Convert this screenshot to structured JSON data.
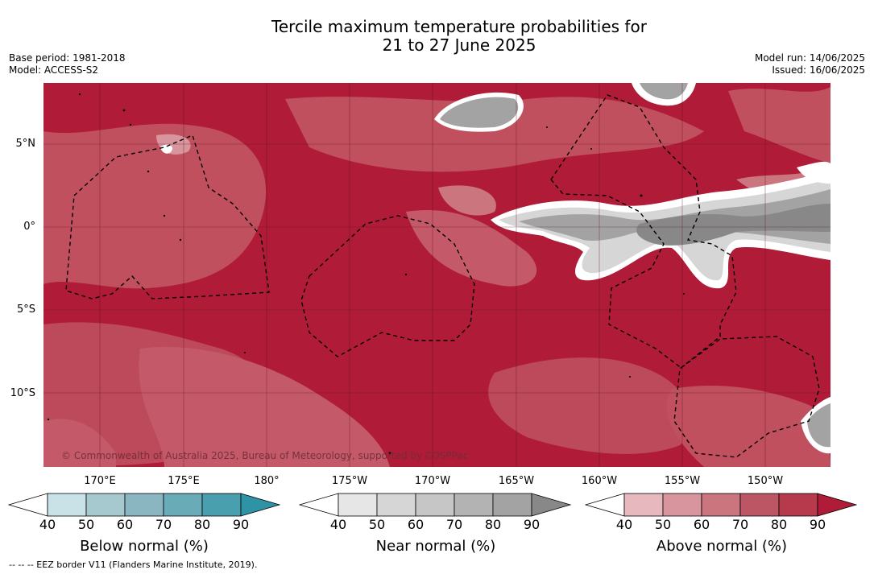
{
  "title_line1": "Tercile maximum temperature probabilities for",
  "title_line2": "21 to 27 June 2025",
  "base_period": "Base period: 1981-2018",
  "model": "Model: ACCESS-S2",
  "model_run": "Model run: 14/06/2025",
  "issued": "Issued: 16/06/2025",
  "lat_labels": [
    "5°N",
    "0°",
    "5°S",
    "10°S"
  ],
  "lon_labels": [
    "170°E",
    "175°E",
    "180°",
    "175°W",
    "170°W",
    "165°W",
    "160°W",
    "155°W",
    "150°W"
  ],
  "copyright": "© Commonwealth of Australia 2025, Bureau of Meteorology, supported by COSPPac",
  "colorbars": [
    {
      "label": "Below normal (%)",
      "ticks": [
        "40",
        "50",
        "60",
        "70",
        "80",
        "90"
      ],
      "colors": [
        "#ffffff",
        "#c9e2e8",
        "#a6c8cf",
        "#89b6c1",
        "#6aabb8",
        "#4a9fae",
        "#2f93a6"
      ]
    },
    {
      "label": "Near normal (%)",
      "ticks": [
        "40",
        "50",
        "60",
        "70",
        "80",
        "90"
      ],
      "colors": [
        "#ffffff",
        "#e6e6e6",
        "#d6d6d6",
        "#c6c6c6",
        "#b3b3b3",
        "#a3a3a3",
        "#888888"
      ]
    },
    {
      "label": "Above normal (%)",
      "ticks": [
        "40",
        "50",
        "60",
        "70",
        "80",
        "90"
      ],
      "colors": [
        "#ffffff",
        "#e8b8bf",
        "#d9959e",
        "#cb757f",
        "#bd5664",
        "#b63a4c",
        "#b01c38"
      ]
    }
  ],
  "footnote": "-- -- -- EEZ border V11 (Flanders Marine Institute, 2019).",
  "map_colors": {
    "above_90": "#b01c38",
    "above_80": "#b63a4c",
    "above_70": "#c1505f",
    "above_60": "#cb757f",
    "near_70": "#a3a3a3",
    "near_90": "#888888",
    "near_50": "#d6d6d6"
  }
}
